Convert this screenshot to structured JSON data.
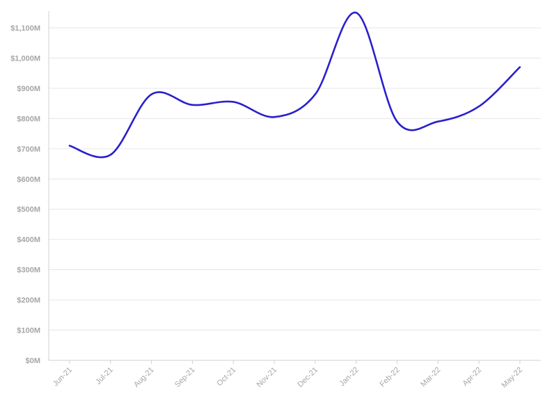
{
  "chart_data": {
    "type": "line",
    "title": "",
    "xlabel": "",
    "ylabel": "",
    "categories": [
      "Jun-21",
      "Jul-21",
      "Aug-21",
      "Sep-21",
      "Oct-21",
      "Nov-21",
      "Dec-21",
      "Jan-22",
      "Feb-22",
      "Mar-22",
      "Apr-22",
      "May-22"
    ],
    "series": [
      {
        "values": [
          710,
          680,
          880,
          845,
          855,
          805,
          880,
          1150,
          790,
          790,
          840,
          970
        ],
        "color": "#2a1fcc"
      }
    ],
    "ylim": [
      0,
      1100
    ],
    "y_ticks": [
      0,
      100,
      200,
      300,
      400,
      500,
      600,
      700,
      800,
      900,
      1000,
      1100
    ],
    "y_tick_labels": [
      "$0M",
      "$100M",
      "$200M",
      "$300M",
      "$400M",
      "$500M",
      "$600M",
      "$700M",
      "$800M",
      "$900M",
      "$1,000M",
      "$1,100M"
    ],
    "grid": true,
    "smooth": true,
    "legend": "none"
  }
}
